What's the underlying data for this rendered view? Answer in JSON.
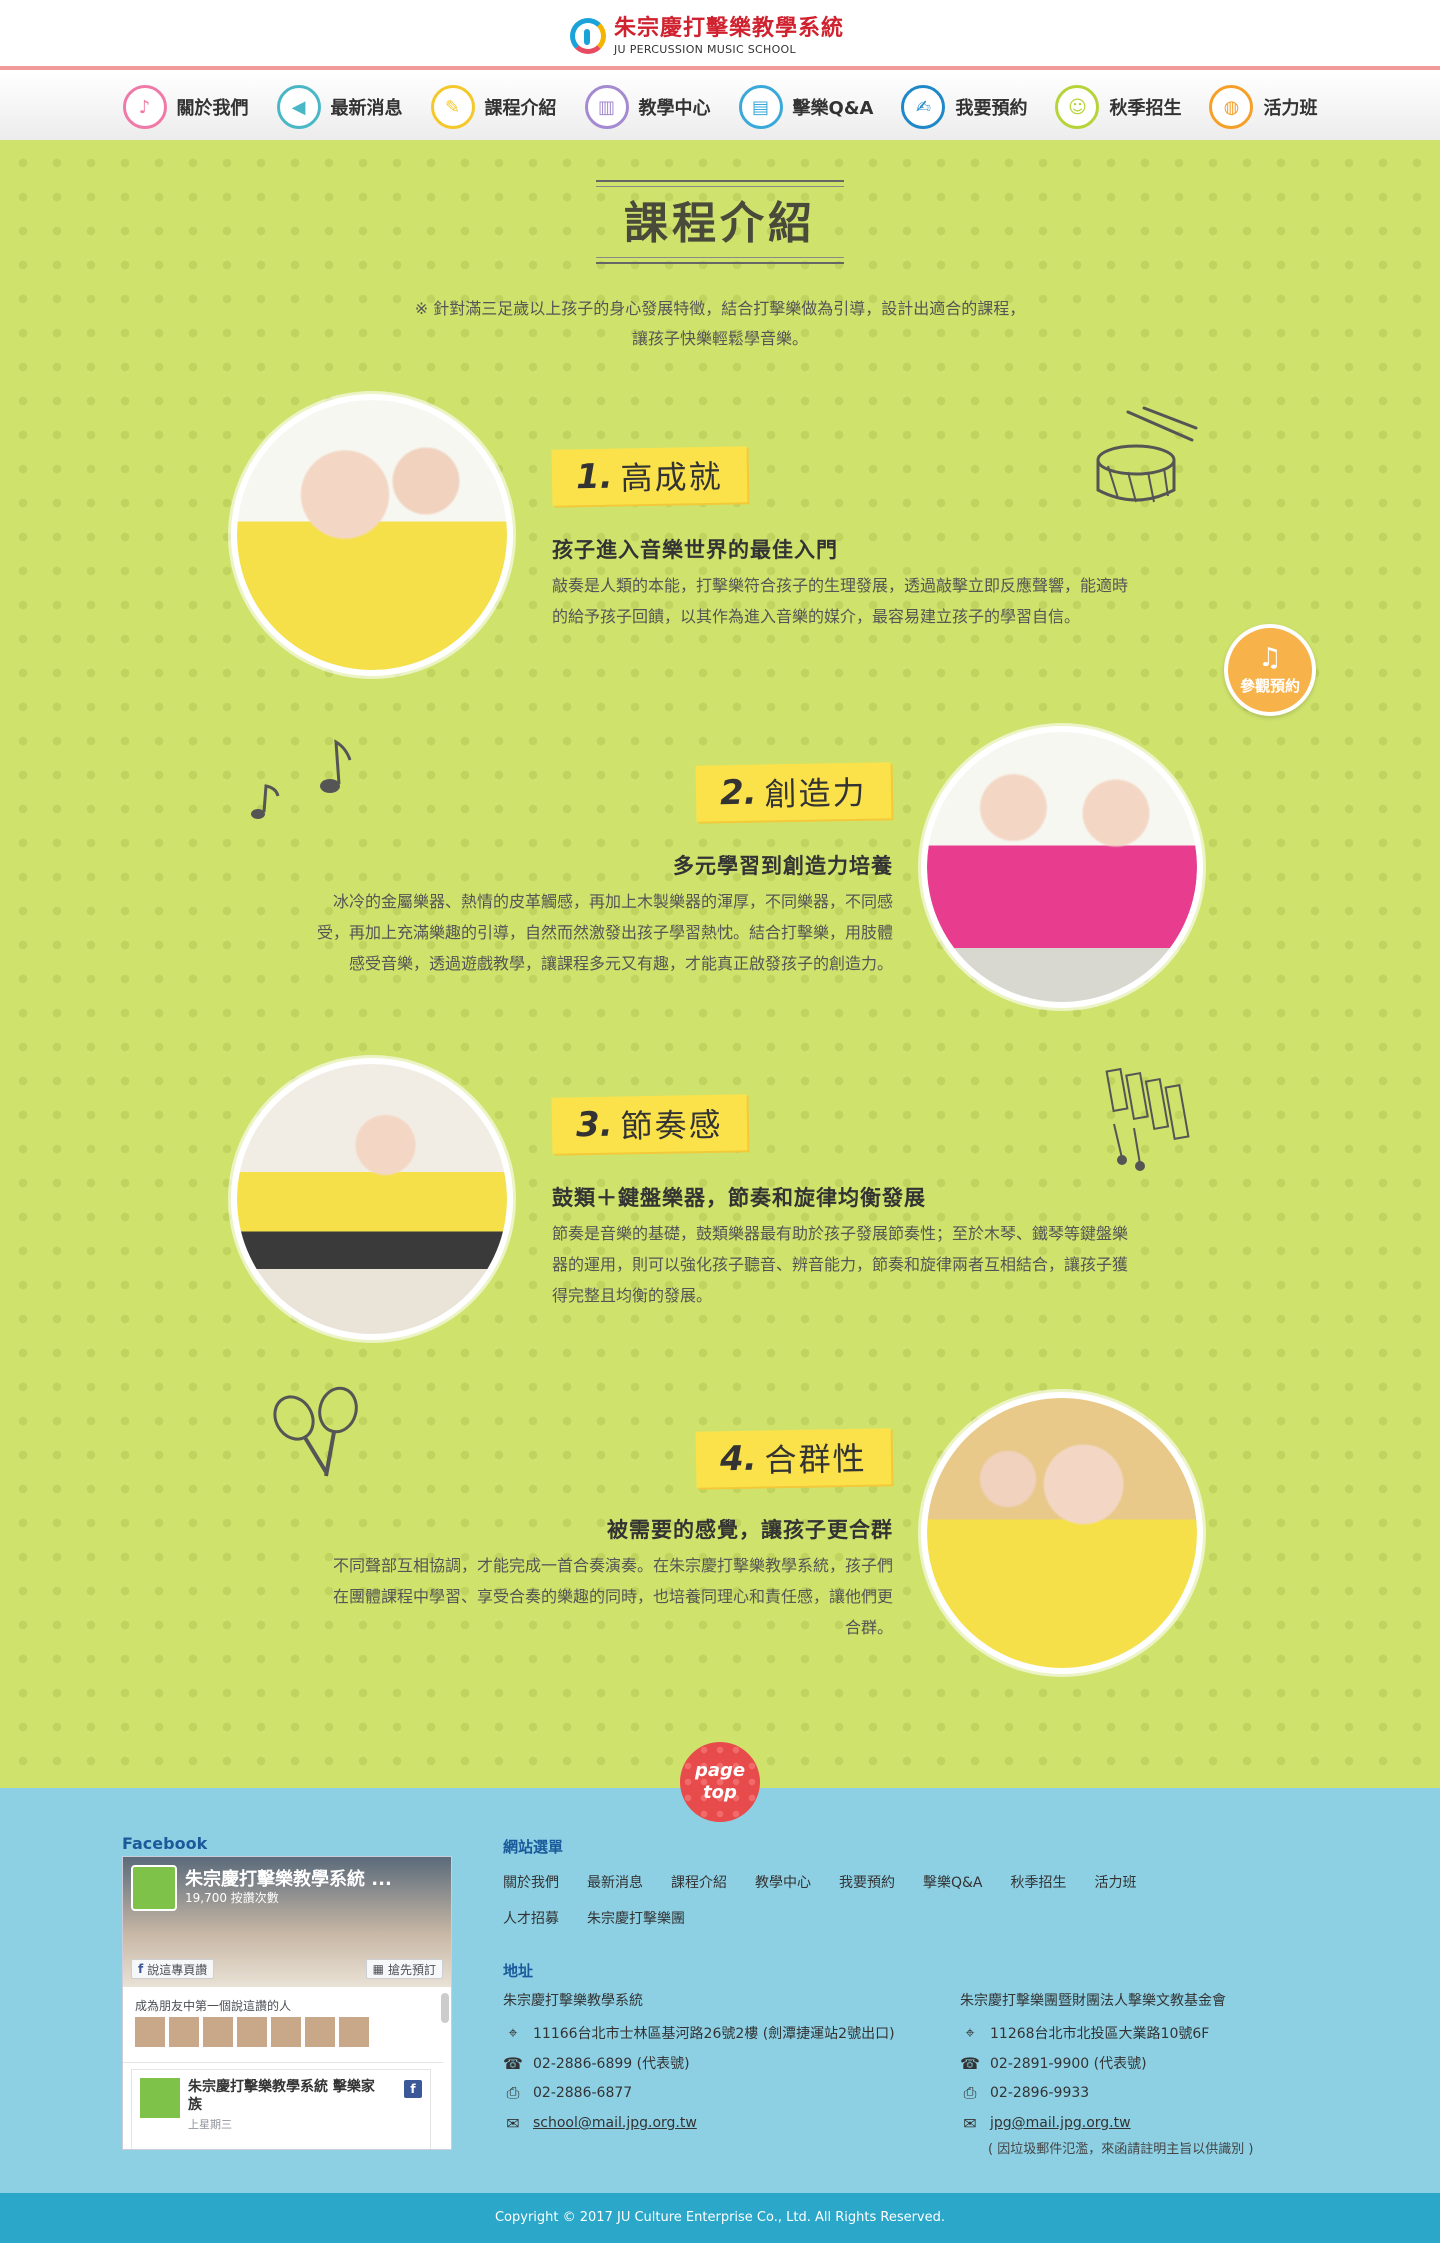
{
  "brand": {
    "name_cn": "朱宗慶打擊樂教學系統",
    "name_en": "JU PERCUSSION MUSIC SCHOOL"
  },
  "nav": [
    {
      "label": "關於我們",
      "icon": "music-note-icon",
      "color": "#f07aa7"
    },
    {
      "label": "最新消息",
      "icon": "megaphone-icon",
      "color": "#4ab7c7"
    },
    {
      "label": "課程介紹",
      "icon": "pen-icon",
      "color": "#f4c82a"
    },
    {
      "label": "教學中心",
      "icon": "drum-icon",
      "color": "#a48ad0"
    },
    {
      "label": "擊樂Q&A",
      "icon": "chat-icon",
      "color": "#3aa9d9"
    },
    {
      "label": "我要預約",
      "icon": "edit-icon",
      "color": "#1f88c8"
    },
    {
      "label": "秋季招生",
      "icon": "person-icon",
      "color": "#b7d33a"
    },
    {
      "label": "活力班",
      "icon": "snare-icon",
      "color": "#f6a02a"
    }
  ],
  "page": {
    "title": "課程介紹",
    "intro": [
      "※ 針對滿三足歲以上孩子的身心發展特徵，結合打擊樂做為引導，設計出適合的課程，",
      "讓孩子快樂輕鬆學音樂。"
    ]
  },
  "sections": [
    {
      "num": "1.",
      "title": "高成就",
      "subtitle": "孩子進入音樂世界的最佳入門",
      "desc": [
        "敲奏是人類的本能，打擊樂符合孩子的生理發展，透過敲擊立即反應聲響，能適時",
        "的給予孩子回饋，以其作為進入音樂的媒介，最容易建立孩子的學習自信。"
      ]
    },
    {
      "num": "2.",
      "title": "創造力",
      "subtitle": "多元學習到創造力培養",
      "desc": [
        "冰冷的金屬樂器、熱情的皮革觸感，再加上木製樂器的渾厚，不同樂器，不同感",
        "受，再加上充滿樂趣的引導，自然而然激發出孩子學習熱忱。結合打擊樂，用肢體",
        "感受音樂，透過遊戲教學，讓課程多元又有趣，才能真正啟發孩子的創造力。"
      ]
    },
    {
      "num": "3.",
      "title": "節奏感",
      "subtitle": "鼓類＋鍵盤樂器，節奏和旋律均衡發展",
      "desc": [
        "節奏是音樂的基礎，鼓類樂器最有助於孩子發展節奏性；至於木琴、鐵琴等鍵盤樂",
        "器的運用，則可以強化孩子聽音、辨音能力，節奏和旋律兩者互相結合，讓孩子獲",
        "得完整且均衡的發展。"
      ]
    },
    {
      "num": "4.",
      "title": "合群性",
      "subtitle": "被需要的感覺，讓孩子更合群",
      "desc": [
        "不同聲部互相協調，才能完成一首合奏演奏。在朱宗慶打擊樂教學系統，孩子們",
        "在團體課程中學習、享受合奏的樂趣的同時，也培養同理心和責任感，讓他們更",
        "合群。"
      ]
    }
  ],
  "badge": {
    "icon": "♫",
    "label": "參觀預約"
  },
  "pagetop": {
    "line1": "page",
    "line2": "top"
  },
  "facebook": {
    "label": "Facebook",
    "page_name": "朱宗慶打擊樂教學系統 ...",
    "likes": "19,700 按讚次數",
    "like_btn": "說這專頁讚",
    "share_btn": "搶先預訂",
    "friends_text": "成為朋友中第一個說這讚的人",
    "post_title": "朱宗慶打擊樂教學系統 擊樂家族",
    "post_time": "上星期三"
  },
  "footer": {
    "menu_title": "網站選單",
    "menu_row1": [
      "關於我們",
      "最新消息",
      "課程介紹",
      "教學中心",
      "我要預約",
      "擊樂Q&A",
      "秋季招生",
      "活力班"
    ],
    "menu_row2": [
      "人才招募",
      "朱宗慶打擊樂團"
    ],
    "address_title": "地址",
    "org1": {
      "name": "朱宗慶打擊樂教學系統",
      "addr": "11166台北市士林區基河路26號2樓 (劍潭捷運站2號出口)",
      "tel": "02-2886-6899 (代表號)",
      "fax": "02-2886-6877",
      "email": "school@mail.jpg.org.tw"
    },
    "org2": {
      "name": "朱宗慶打擊樂團暨財團法人擊樂文教基金會",
      "addr": "11268台北市北投區大業路10號6F",
      "tel": "02-2891-9900 (代表號)",
      "fax": "02-2896-9933",
      "email": "jpg@mail.jpg.org.tw",
      "note": "( 因垃圾郵件氾濫，來函請註明主旨以供識別 )"
    },
    "copyright": "Copyright © 2017 JU Culture Enterprise Co., Ltd. All Rights Reserved."
  }
}
